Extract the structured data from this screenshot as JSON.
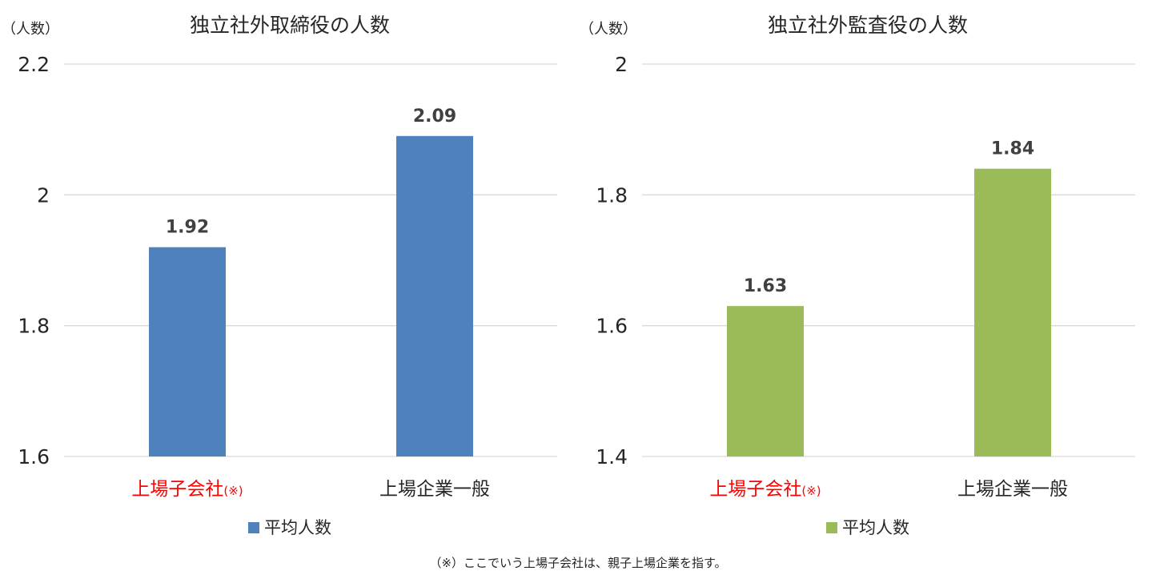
{
  "chart_data": [
    {
      "type": "bar",
      "title": "独立社外取締役の人数",
      "unit_label": "（人数）",
      "categories": [
        "上場子会社",
        "上場企業一般"
      ],
      "category_notes": [
        "(※)",
        ""
      ],
      "category_colors": [
        "#FF0000",
        "#262626"
      ],
      "series": [
        {
          "name": "平均人数",
          "values": [
            1.92,
            2.09
          ],
          "color": "#4F81BD"
        }
      ],
      "value_labels": [
        "1.92",
        "2.09"
      ],
      "ylim": [
        1.6,
        2.2
      ],
      "yticks": [
        1.6,
        1.8,
        2.0,
        2.2
      ],
      "ytick_labels": [
        "1.6",
        "1.8",
        "2",
        "2.2"
      ],
      "grid": true,
      "legend": "bottom",
      "legend_label": "平均人数"
    },
    {
      "type": "bar",
      "title": "独立社外監査役の人数",
      "unit_label": "（人数）",
      "categories": [
        "上場子会社",
        "上場企業一般"
      ],
      "category_notes": [
        "(※)",
        ""
      ],
      "category_colors": [
        "#FF0000",
        "#262626"
      ],
      "series": [
        {
          "name": "平均人数",
          "values": [
            1.63,
            1.84
          ],
          "color": "#9BBB59"
        }
      ],
      "value_labels": [
        "1.63",
        "1.84"
      ],
      "ylim": [
        1.4,
        2.0
      ],
      "yticks": [
        1.4,
        1.6,
        1.8,
        2.0
      ],
      "ytick_labels": [
        "1.4",
        "1.6",
        "1.8",
        "2"
      ],
      "grid": true,
      "legend": "bottom",
      "legend_label": "平均人数"
    }
  ],
  "footnote": "（※）ここでいう上場子会社は、親子上場企業を指す。"
}
